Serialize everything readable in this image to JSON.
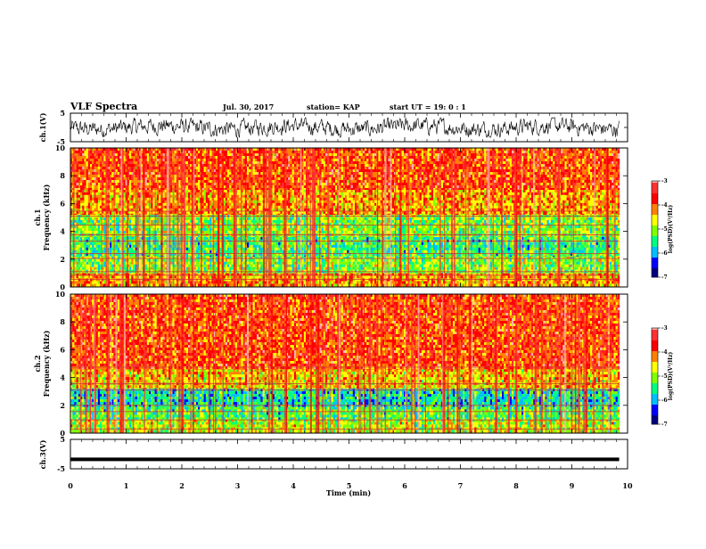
{
  "header": {
    "title": "VLF Spectra",
    "date": "Jul. 30, 2017",
    "station": "station= KAP",
    "start": "start  UT  =   19: 0  : 1"
  },
  "chart_data": [
    {
      "type": "line",
      "panel": "ch1-waveform",
      "ylabel": "ch.1(V)",
      "ylim": [
        -5,
        5
      ],
      "yticks": [
        "5",
        "-5"
      ],
      "xlim": [
        0,
        10
      ],
      "x_range_data": [
        0,
        9.85
      ],
      "series": [
        {
          "values_note_free": true,
          "approx_range": [
            -3.2,
            3.2
          ]
        }
      ],
      "color": "#000000"
    },
    {
      "type": "heatmap",
      "panel": "ch1-spectrogram",
      "ylabel": "ch.1\nFrequency  (kHz)",
      "ylabel_lines": [
        "ch.1",
        "Frequency  (kHz)"
      ],
      "ylim": [
        0,
        10
      ],
      "yticks": [
        "0",
        "2",
        "4",
        "6",
        "8",
        "10"
      ],
      "xlim": [
        0,
        10
      ],
      "x_range_data": [
        0,
        9.85
      ],
      "colorbar": {
        "range": [
          -7,
          -3
        ],
        "ticks": [
          "-3",
          "-4",
          "-5",
          "-6",
          "-7"
        ],
        "label": "log(PSD)(V²/Hz)"
      },
      "bands_khz": [
        {
          "from": 0,
          "to": 1.0,
          "level": -4.2
        },
        {
          "from": 1.0,
          "to": 2.2,
          "level": -5.0
        },
        {
          "from": 2.2,
          "to": 3.6,
          "level": -5.3
        },
        {
          "from": 3.6,
          "to": 5.2,
          "level": -5.0
        },
        {
          "from": 5.2,
          "to": 7.0,
          "level": -4.2
        },
        {
          "from": 7.0,
          "to": 10.0,
          "level": -3.8
        }
      ],
      "lines_khz": [
        0.55,
        0.85,
        1.1,
        2.05,
        2.4,
        3.3,
        3.75,
        4.45,
        5.1,
        5.45
      ]
    },
    {
      "type": "heatmap",
      "panel": "ch2-spectrogram",
      "ylabel_lines": [
        "ch.2",
        "Frequency  (kHz)"
      ],
      "ylim": [
        0,
        10
      ],
      "yticks": [
        "0",
        "2",
        "4",
        "6",
        "8",
        "10"
      ],
      "xlim": [
        0,
        10
      ],
      "x_range_data": [
        0,
        9.85
      ],
      "colorbar": {
        "range": [
          -7,
          -3
        ],
        "ticks": [
          "-3",
          "-4",
          "-5",
          "-6",
          "-7"
        ],
        "label": "log(PSD)(V²/Hz)"
      },
      "bands_khz": [
        {
          "from": 0,
          "to": 1.0,
          "level": -4.8
        },
        {
          "from": 1.0,
          "to": 1.9,
          "level": -5.2
        },
        {
          "from": 1.9,
          "to": 3.2,
          "level": -5.6
        },
        {
          "from": 3.2,
          "to": 4.6,
          "level": -4.4
        },
        {
          "from": 4.6,
          "to": 10.0,
          "level": -3.8
        }
      ],
      "lines_khz": [
        0.3,
        0.95,
        1.55,
        2.0,
        3.1,
        3.55,
        4.75
      ]
    },
    {
      "type": "line",
      "panel": "ch3-waveform",
      "ylabel": "ch.3(V)",
      "ylim": [
        -5,
        5
      ],
      "yticks": [
        "5",
        "-5"
      ],
      "xlim": [
        0,
        10
      ],
      "x_range_data": [
        0,
        9.85
      ],
      "series": [
        {
          "constant_value": -1.8
        }
      ],
      "xlabel": "Time  (min)",
      "xticks": [
        "0",
        "1",
        "2",
        "3",
        "4",
        "5",
        "6",
        "7",
        "8",
        "9",
        "10"
      ]
    }
  ],
  "colors": {
    "colormap": [
      "#000080",
      "#0000ff",
      "#00bfff",
      "#00ff80",
      "#80ff00",
      "#ffff00",
      "#ff8000",
      "#ff0000",
      "#ff3030",
      "#ffb0b0",
      "#ffffff"
    ]
  }
}
